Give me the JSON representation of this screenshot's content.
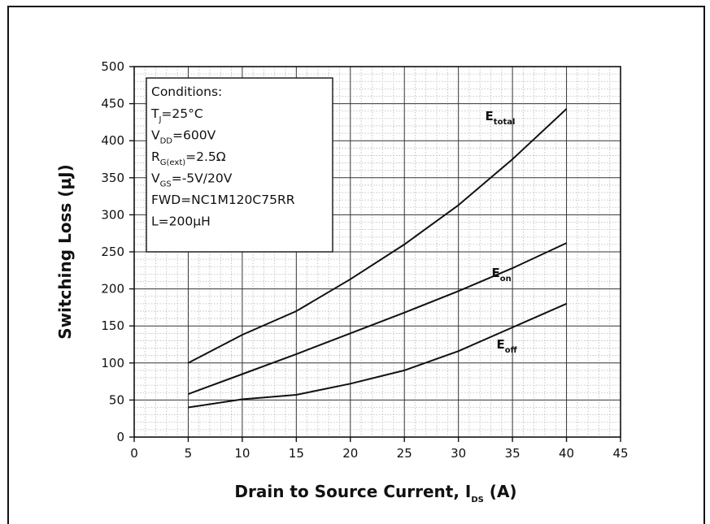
{
  "chart_data": {
    "type": "line",
    "title": "",
    "xlabel": {
      "main": "Drain to Source Current, I",
      "sub": "DS",
      "unit": " (A)"
    },
    "ylabel": "Switching Loss (µJ)",
    "xlim": [
      0,
      45
    ],
    "ylim": [
      0,
      500
    ],
    "x_ticks": [
      0,
      5,
      10,
      15,
      20,
      25,
      30,
      35,
      40,
      45
    ],
    "y_ticks": [
      0,
      50,
      100,
      150,
      200,
      250,
      300,
      350,
      400,
      450,
      500
    ],
    "grid": true,
    "x": [
      5,
      10,
      15,
      20,
      25,
      30,
      35,
      40
    ],
    "series": [
      {
        "name": "E_total",
        "label_main": "E",
        "label_sub": "total",
        "values": [
          100,
          138,
          170,
          213,
          260,
          313,
          375,
          443
        ]
      },
      {
        "name": "E_on",
        "label_main": "E",
        "label_sub": "on",
        "values": [
          58,
          85,
          112,
          140,
          168,
          197,
          228,
          262
        ]
      },
      {
        "name": "E_off",
        "label_main": "E",
        "label_sub": "off",
        "values": [
          40,
          51,
          57,
          72,
          90,
          116,
          148,
          180
        ]
      }
    ],
    "conditions": {
      "heading": "Conditions:",
      "lines": [
        {
          "main": "T",
          "sub": "J",
          "rest": "=25°C"
        },
        {
          "main": "V",
          "sub": "DD",
          "rest": "=600V"
        },
        {
          "main": "R",
          "sub": "G(ext)",
          "rest": "=2.5Ω"
        },
        {
          "main": "V",
          "sub": "GS",
          "rest": "=-5V/20V"
        },
        {
          "main": "FWD=NC1M120C75RR",
          "sub": "",
          "rest": ""
        },
        {
          "main": "L=200µH",
          "sub": "",
          "rest": ""
        }
      ]
    }
  }
}
